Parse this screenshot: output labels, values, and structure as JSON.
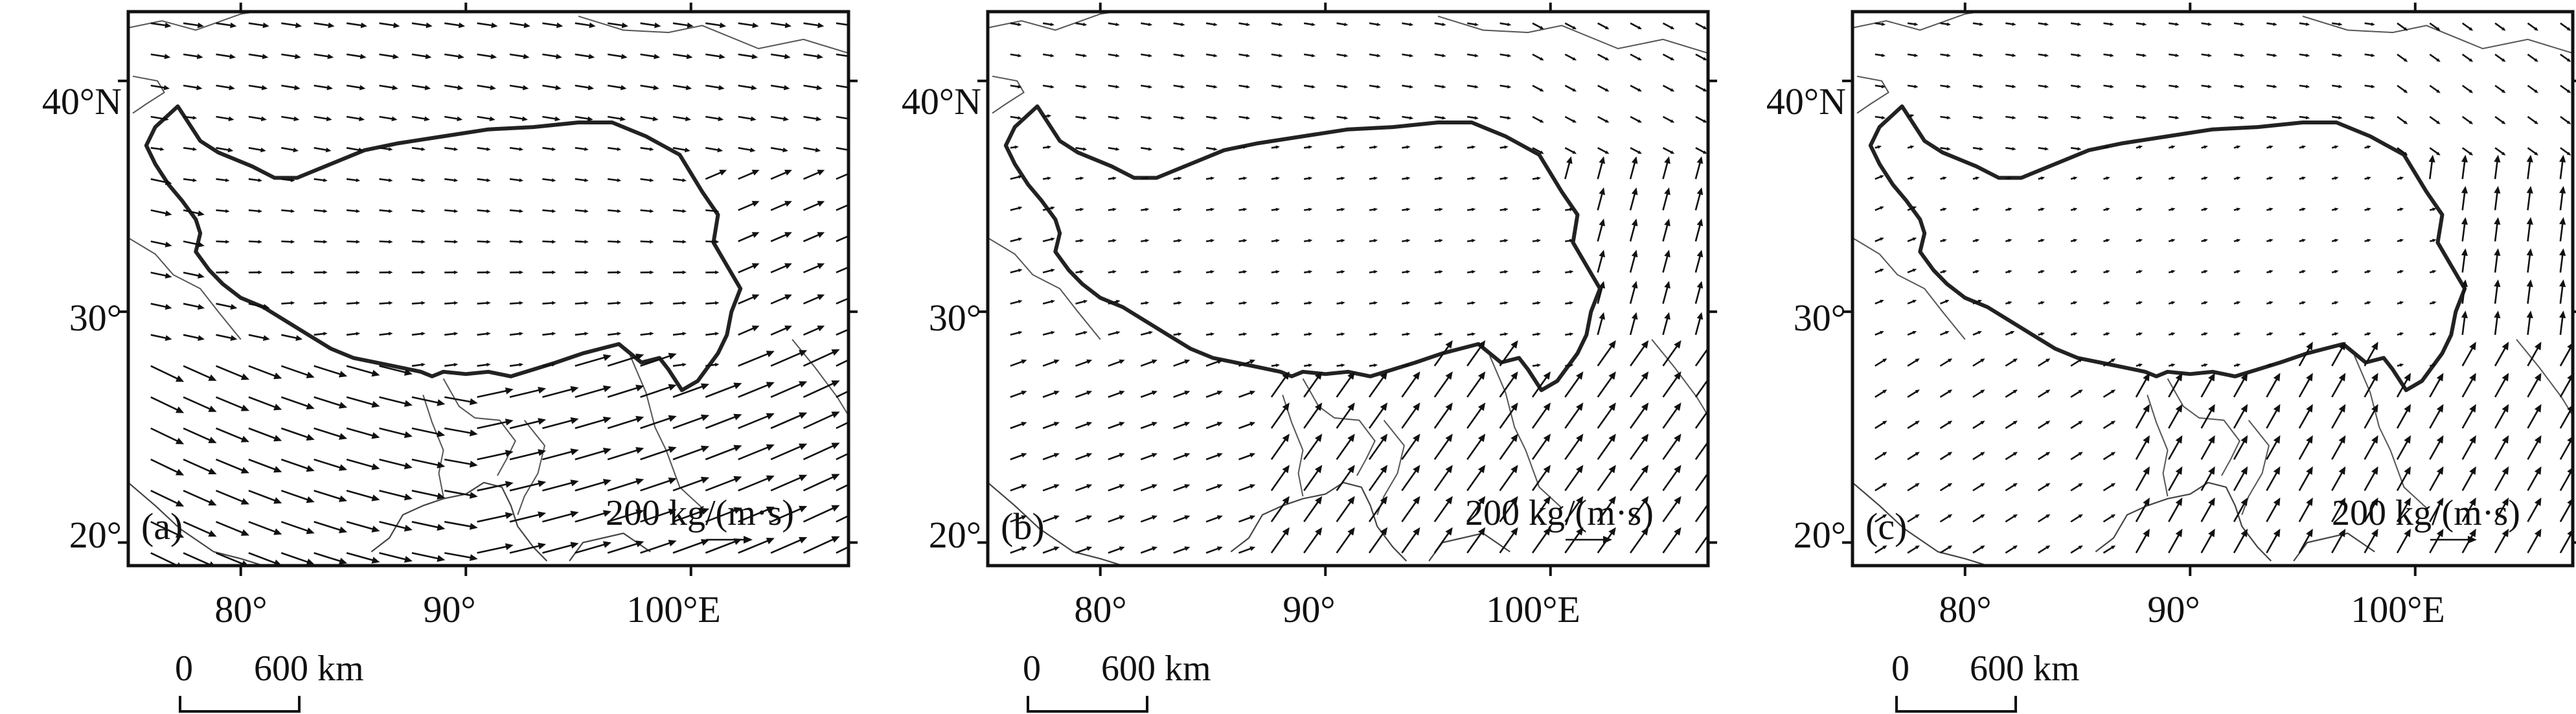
{
  "figure": {
    "panels": [
      {
        "label": "(a)",
        "reference_vector": "200 kg/(m·s)"
      },
      {
        "label": "(b)",
        "reference_vector": "200 kg/(m·s)"
      },
      {
        "label": "(c)",
        "reference_vector": "200 kg/(m·s)"
      }
    ],
    "x_ticks": [
      "80°",
      "90°",
      "100°E"
    ],
    "y_ticks": [
      "40°N",
      "30°",
      "20°"
    ],
    "scale_bar": {
      "zero": "0",
      "distance": "600 km"
    },
    "colors": {
      "frame": "#111111",
      "arrows": "#111111",
      "plateau_boundary": "#222222",
      "coastline": "#444444"
    }
  },
  "chart_data": [
    {
      "type": "vector_field",
      "panel": "(a)",
      "lon_range": [
        75,
        107
      ],
      "lat_range": [
        19,
        43
      ],
      "x_tick_values": [
        80,
        90,
        100
      ],
      "y_tick_values": [
        20,
        30,
        40
      ],
      "reference_magnitude": 200,
      "reference_unit": "kg/(m·s)",
      "pattern": "strong westerly/southwesterly flux south of the plateau, weak eastward flow over the plateau"
    },
    {
      "type": "vector_field",
      "panel": "(b)",
      "lon_range": [
        75,
        107
      ],
      "lat_range": [
        19,
        43
      ],
      "x_tick_values": [
        80,
        90,
        100
      ],
      "y_tick_values": [
        20,
        30,
        40
      ],
      "reference_magnitude": 200,
      "reference_unit": "kg/(m·s)",
      "pattern": "weak flux over plateau, southwesterly flux over Bay of Bengal, northward flux east of plateau"
    },
    {
      "type": "vector_field",
      "panel": "(c)",
      "lon_range": [
        75,
        107
      ],
      "lat_range": [
        19,
        43
      ],
      "x_tick_values": [
        80,
        90,
        100
      ],
      "y_tick_values": [
        20,
        30,
        40
      ],
      "reference_magnitude": 200,
      "reference_unit": "kg/(m·s)",
      "pattern": "weak flux over plateau, southerly/southwesterly flux south and east of plateau"
    }
  ]
}
